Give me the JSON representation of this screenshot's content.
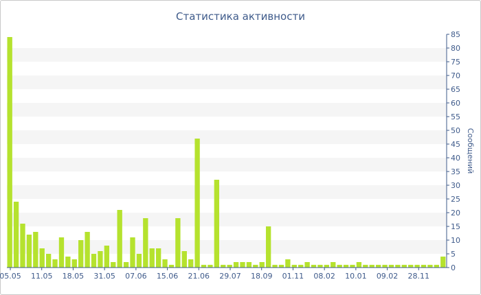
{
  "chart_data": {
    "type": "bar",
    "title": "Статистика активности",
    "xlabel": "",
    "ylabel": "Сообщений",
    "ylim": [
      0,
      85
    ],
    "yticks": [
      0,
      5,
      10,
      15,
      20,
      25,
      30,
      35,
      40,
      45,
      50,
      55,
      60,
      65,
      70,
      75,
      80,
      85
    ],
    "x_tick_labels": [
      "05.05",
      "11.05",
      "18.05",
      "31.05",
      "07.06",
      "15.06",
      "21.06",
      "29.07",
      "18.09",
      "01.11",
      "08.02",
      "10.01",
      "09.02",
      "28.11"
    ],
    "values": [
      84,
      24,
      16,
      12,
      13,
      7,
      5,
      3,
      11,
      4,
      3,
      10,
      13,
      5,
      6,
      8,
      2,
      21,
      2,
      11,
      5,
      18,
      7,
      7,
      3,
      1,
      18,
      6,
      3,
      47,
      1,
      1,
      32,
      1,
      1,
      2,
      2,
      2,
      1,
      2,
      15,
      1,
      1,
      3,
      1,
      1,
      2,
      1,
      1,
      1,
      2,
      1,
      1,
      1,
      2,
      1,
      1,
      1,
      1,
      1,
      1,
      1,
      1,
      1,
      1,
      1,
      1,
      4
    ],
    "bar_color": "#b5e22e",
    "band_color": "#f5f5f5",
    "axis_color": "#3e5a8a",
    "grid": "alternating horizontal bands",
    "y_axis_side": "right"
  }
}
